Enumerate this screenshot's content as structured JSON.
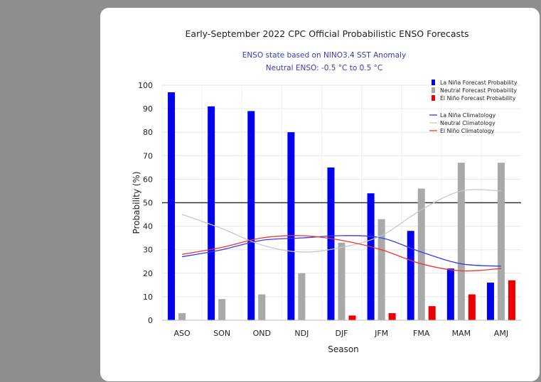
{
  "chart_data": {
    "type": "bar",
    "title": "Early-September 2022 CPC Official Probabilistic ENSO Forecasts",
    "subtitle_lines": [
      "ENSO state based on NINO3.4 SST Anomaly",
      "Neutral ENSO: -0.5 °C to 0.5 °C"
    ],
    "xlabel": "Season",
    "ylabel": "Probability (%)",
    "ylim": [
      0,
      100
    ],
    "yticks": [
      0,
      10,
      20,
      30,
      40,
      50,
      60,
      70,
      80,
      90,
      100
    ],
    "categories": [
      "ASO",
      "SON",
      "OND",
      "NDJ",
      "DJF",
      "JFM",
      "FMA",
      "MAM",
      "AMJ"
    ],
    "threshold_line": 50,
    "grid": true,
    "legend_position": "top-right",
    "series": [
      {
        "name": "La Niña Forecast Probability",
        "kind": "bar",
        "color": "#0000ee",
        "values": [
          97,
          91,
          89,
          80,
          65,
          54,
          38,
          22,
          16
        ]
      },
      {
        "name": "Neutral Forecast Probability",
        "kind": "bar",
        "color": "#a9a9a9",
        "values": [
          3,
          9,
          11,
          20,
          33,
          43,
          56,
          67,
          67
        ]
      },
      {
        "name": "El Niño Forecast Probability",
        "kind": "bar",
        "color": "#ee0000",
        "values": [
          0,
          0,
          0,
          0,
          2,
          3,
          6,
          11,
          17
        ]
      },
      {
        "name": "La Niña Climatology",
        "kind": "line",
        "color": "#3a3ae8",
        "values": [
          27,
          30,
          34,
          35,
          36,
          35,
          29,
          24,
          23
        ]
      },
      {
        "name": "Neutral Climatology",
        "kind": "line",
        "color": "#c8c8c8",
        "values": [
          45,
          39,
          32,
          29,
          31,
          36,
          47,
          55,
          55
        ]
      },
      {
        "name": "El Niño Climatology",
        "kind": "line",
        "color": "#ee3333",
        "values": [
          28,
          31,
          35,
          36,
          34,
          30,
          24,
          21,
          22
        ]
      }
    ]
  }
}
